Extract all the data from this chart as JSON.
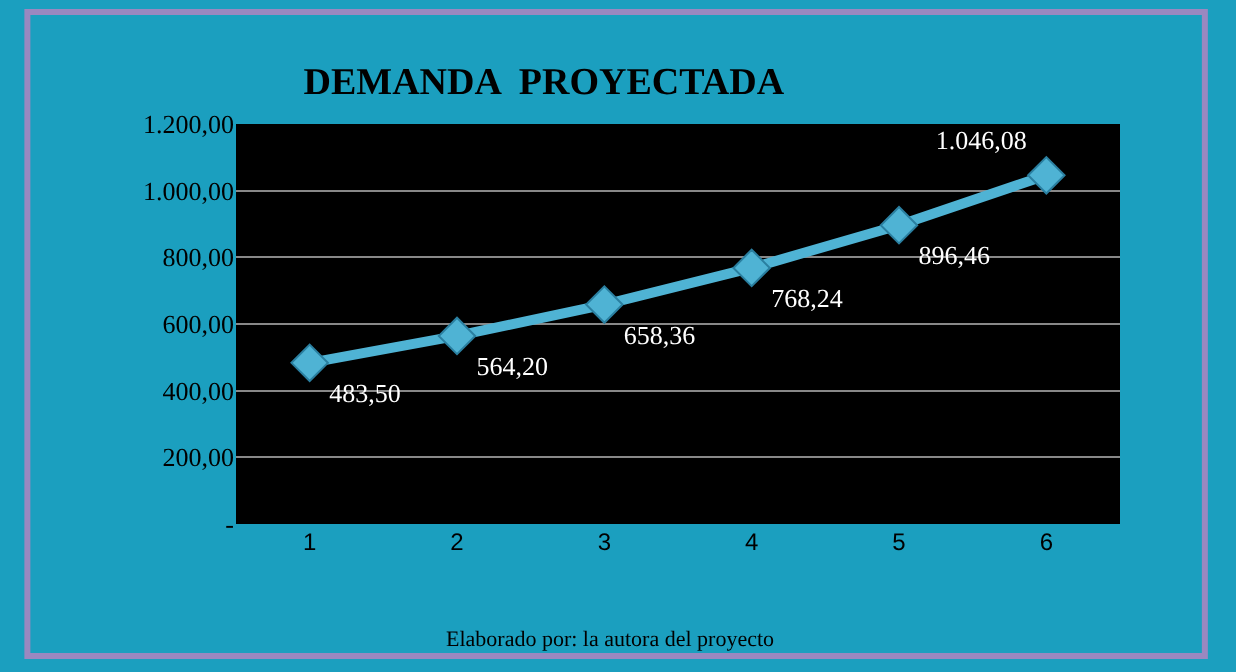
{
  "chart_data": {
    "type": "line",
    "title": "DEMANDA  PROYECTADA",
    "categories": [
      "1",
      "2",
      "3",
      "4",
      "5",
      "6"
    ],
    "series": [
      {
        "color": "#4fb3d4",
        "values": [
          483.5,
          564.2,
          658.36,
          768.24,
          896.46,
          1046.08
        ],
        "value_labels": [
          "483,50",
          "564,20",
          "658,36",
          "768,24",
          "896,46",
          "1.046,08"
        ]
      }
    ],
    "ylim": [
      0,
      1200
    ],
    "yticks": [
      {
        "value": 0,
        "label": "-"
      },
      {
        "value": 200,
        "label": "200,00"
      },
      {
        "value": 400,
        "label": "400,00"
      },
      {
        "value": 600,
        "label": "600,00"
      },
      {
        "value": 800,
        "label": "800,00"
      },
      {
        "value": 1000,
        "label": "1.000,00"
      },
      {
        "value": 1200,
        "label": "1.200,00"
      }
    ],
    "grid": "y",
    "marker": "diamond",
    "line_style": "solid",
    "legend": false,
    "annotations": [
      "Elaborado por: la autora del proyecto"
    ]
  }
}
